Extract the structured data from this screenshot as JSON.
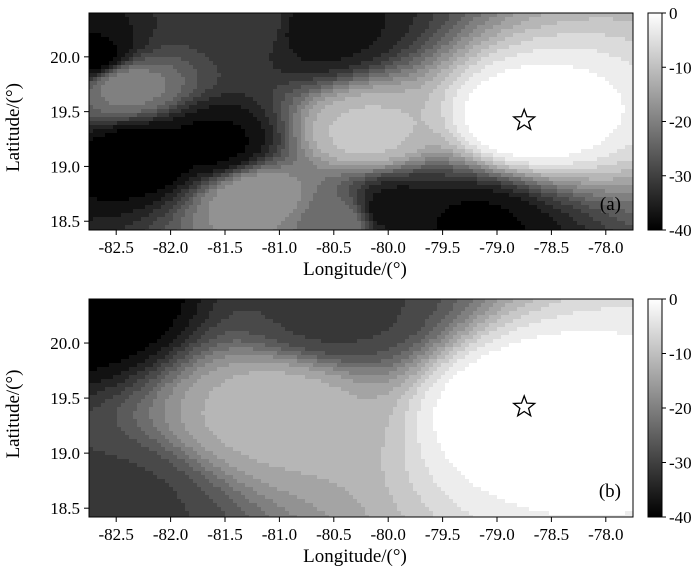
{
  "chart_data": [
    {
      "type": "heatmap",
      "panel_label": "(a)",
      "xlabel": "Longitude/(°)",
      "ylabel": "Latitude/(°)",
      "xlim": [
        -82.75,
        -77.75
      ],
      "ylim": [
        18.42,
        20.4
      ],
      "x_ticks": [
        "-82.5",
        "-82.0",
        "-81.5",
        "-81.0",
        "-80.5",
        "-80.0",
        "-79.5",
        "-79.0",
        "-78.5",
        "-78.0"
      ],
      "y_ticks": [
        "18.5",
        "19.0",
        "19.5",
        "20.0"
      ],
      "colorbar": {
        "min": -40,
        "max": 0,
        "ticks": [
          "0",
          "-10",
          "-20",
          "-30",
          "-40"
        ],
        "colors": [
          "#000000",
          "#ffffff"
        ]
      },
      "marker": {
        "symbol": "star",
        "lon": -78.75,
        "lat": 19.42
      },
      "peaks": [
        {
          "lon": -78.75,
          "lat": 19.42,
          "value": 0
        },
        {
          "lon": -80.2,
          "lat": 19.3,
          "value": -10
        },
        {
          "lon": -81.2,
          "lat": 18.7,
          "value": -16
        },
        {
          "lon": -82.4,
          "lat": 19.75,
          "value": -20
        },
        {
          "lon": -80.5,
          "lat": 18.5,
          "value": -22
        }
      ],
      "troughs": [
        {
          "lon": -82.25,
          "lat": 19.1,
          "value": -40
        },
        {
          "lon": -81.6,
          "lat": 19.2,
          "value": -38
        },
        {
          "lon": -82.7,
          "lat": 20.0,
          "value": -38
        },
        {
          "lon": -80.65,
          "lat": 20.25,
          "value": -36
        },
        {
          "lon": -79.95,
          "lat": 18.6,
          "value": -36
        },
        {
          "lon": -79.25,
          "lat": 18.45,
          "value": -38
        },
        {
          "lon": -81.3,
          "lat": 20.3,
          "value": -30
        }
      ]
    },
    {
      "type": "heatmap",
      "panel_label": "(b)",
      "xlabel": "Longitude/(°)",
      "ylabel": "Latitude/(°)",
      "xlim": [
        -82.75,
        -77.75
      ],
      "ylim": [
        18.42,
        20.4
      ],
      "x_ticks": [
        "-82.5",
        "-82.0",
        "-81.5",
        "-81.0",
        "-80.5",
        "-80.0",
        "-79.5",
        "-79.0",
        "-78.5",
        "-78.0"
      ],
      "y_ticks": [
        "18.5",
        "19.0",
        "19.5",
        "20.0"
      ],
      "colorbar": {
        "min": -40,
        "max": 0,
        "ticks": [
          "0",
          "-10",
          "-20",
          "-30",
          "-40"
        ],
        "colors": [
          "#000000",
          "#ffffff"
        ]
      },
      "marker": {
        "symbol": "star",
        "lon": -78.75,
        "lat": 19.42
      },
      "peaks": [
        {
          "lon": -78.75,
          "lat": 19.42,
          "value": 0
        },
        {
          "lon": -81.0,
          "lat": 19.4,
          "value": -12
        }
      ],
      "troughs": [
        {
          "lon": -82.75,
          "lat": 20.35,
          "value": -40
        },
        {
          "lon": -80.5,
          "lat": 20.3,
          "value": -30
        },
        {
          "lon": -82.6,
          "lat": 18.5,
          "value": -30
        }
      ]
    }
  ]
}
